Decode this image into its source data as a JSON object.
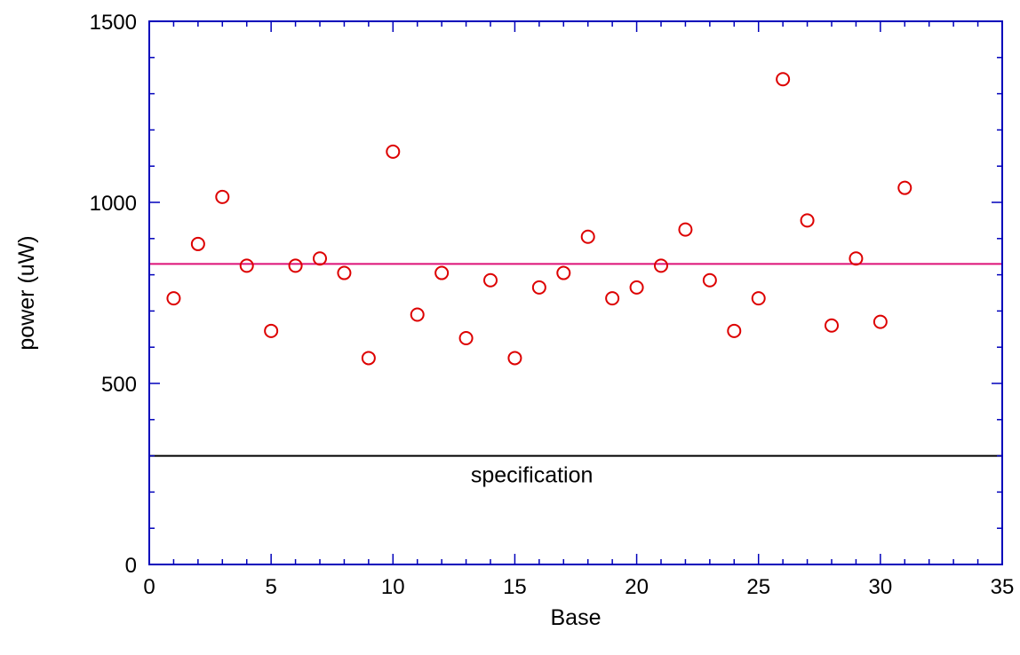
{
  "chart_data": {
    "type": "scatter",
    "title": "",
    "xlabel": "Base",
    "ylabel": "power (uW)",
    "xlim": [
      0,
      35
    ],
    "ylim": [
      0,
      1500
    ],
    "x_ticks": [
      "0",
      "5",
      "10",
      "15",
      "20",
      "25",
      "30",
      "35"
    ],
    "y_ticks": [
      "0",
      "500",
      "1000",
      "1500"
    ],
    "grid": false,
    "series": [
      {
        "marker": "open-circle",
        "color": "#dd0000",
        "x": [
          1,
          2,
          3,
          4,
          5,
          6,
          7,
          8,
          9,
          10,
          11,
          12,
          13,
          14,
          15,
          16,
          17,
          18,
          19,
          20,
          21,
          22,
          23,
          24,
          25,
          26,
          27,
          28,
          29,
          30,
          31
        ],
        "y": [
          735,
          885,
          1015,
          825,
          645,
          825,
          845,
          805,
          570,
          1140,
          690,
          805,
          625,
          785,
          570,
          765,
          805,
          905,
          735,
          765,
          825,
          925,
          785,
          645,
          735,
          1340,
          950,
          660,
          845,
          670,
          1040
        ]
      }
    ],
    "reference_lines": [
      {
        "y": 830,
        "color": "#dd1177",
        "label": ""
      },
      {
        "y": 300,
        "color": "#000000",
        "label": "specification"
      }
    ],
    "axis_color": "#0000bb"
  }
}
